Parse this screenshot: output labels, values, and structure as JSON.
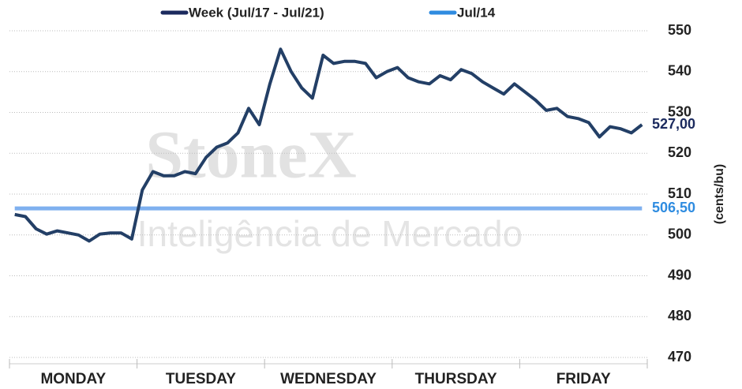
{
  "chart_data": {
    "type": "line",
    "watermark": [
      "StoneX",
      "Inteligência de Mercado"
    ],
    "y_label": "(cents/bu)",
    "categories": [
      null,
      null,
      null,
      null,
      null,
      null,
      "MONDAY",
      null,
      null,
      null,
      null,
      null,
      null,
      null,
      null,
      null,
      null,
      null,
      "TUESDAY",
      null,
      null,
      null,
      null,
      null,
      null,
      null,
      null,
      null,
      null,
      null,
      "WEDNESDAY",
      null,
      null,
      null,
      null,
      null,
      null,
      null,
      null,
      null,
      null,
      null,
      "THURSDAY",
      null,
      null,
      null,
      null,
      null,
      null,
      null,
      null,
      null,
      null,
      null,
      "FRIDAY",
      null,
      null,
      null,
      null,
      null
    ],
    "series": [
      {
        "name": "Week (Jul/17 - Jul/21)",
        "color": "#233f66",
        "values": [
          505,
          504.5,
          501.5,
          500.2,
          501,
          500.5,
          500,
          498.5,
          500.2,
          500.5,
          500.5,
          499,
          511,
          515.5,
          514.5,
          514.5,
          515.5,
          515,
          519,
          521.5,
          522.5,
          525,
          531,
          527,
          537,
          545.5,
          540,
          536,
          533.5,
          544,
          542,
          542.5,
          542.5,
          542,
          538.5,
          540,
          541,
          538.5,
          537.5,
          537,
          539,
          538,
          540.5,
          539.5,
          537.5,
          536,
          534.5,
          537,
          535,
          533,
          530.5,
          531,
          529,
          528.5,
          527.5,
          524,
          526.5,
          526,
          525,
          527
        ],
        "value_labels": [
          null,
          null,
          null,
          null,
          null,
          null,
          null,
          null,
          null,
          null,
          null,
          null,
          null,
          null,
          null,
          null,
          null,
          null,
          null,
          null,
          null,
          null,
          null,
          null,
          null,
          null,
          null,
          null,
          null,
          null,
          null,
          null,
          null,
          null,
          null,
          null,
          null,
          null,
          null,
          null,
          null,
          null,
          null,
          null,
          null,
          null,
          null,
          null,
          null,
          null,
          null,
          null,
          null,
          null,
          null,
          null,
          null,
          null,
          null,
          "527,00"
        ]
      },
      {
        "name": "Jul/14",
        "color": "#7fb0ef",
        "values": [
          506.5,
          506.5,
          506.5,
          506.5,
          506.5,
          506.5,
          506.5,
          506.5,
          506.5,
          506.5,
          506.5,
          506.5,
          506.5,
          506.5,
          506.5,
          506.5,
          506.5,
          506.5,
          506.5,
          506.5,
          506.5,
          506.5,
          506.5,
          506.5,
          506.5,
          506.5,
          506.5,
          506.5,
          506.5,
          506.5,
          506.5,
          506.5,
          506.5,
          506.5,
          506.5,
          506.5,
          506.5,
          506.5,
          506.5,
          506.5,
          506.5,
          506.5,
          506.5,
          506.5,
          506.5,
          506.5,
          506.5,
          506.5,
          506.5,
          506.5,
          506.5,
          506.5,
          506.5,
          506.5,
          506.5,
          506.5,
          506.5,
          506.5,
          506.5,
          506.5
        ],
        "value_labels": [
          null,
          null,
          null,
          null,
          null,
          null,
          null,
          null,
          null,
          null,
          null,
          null,
          null,
          null,
          null,
          null,
          null,
          null,
          null,
          null,
          null,
          null,
          null,
          null,
          null,
          null,
          null,
          null,
          null,
          null,
          null,
          null,
          null,
          null,
          null,
          null,
          null,
          null,
          null,
          null,
          null,
          null,
          null,
          null,
          null,
          null,
          null,
          null,
          null,
          null,
          null,
          null,
          null,
          null,
          null,
          null,
          null,
          null,
          null,
          "506,50"
        ]
      }
    ],
    "ylim": [
      470,
      550
    ],
    "yticks": [
      470,
      480,
      490,
      500,
      510,
      520,
      530,
      540,
      550
    ],
    "grid": true,
    "legend": "top"
  }
}
